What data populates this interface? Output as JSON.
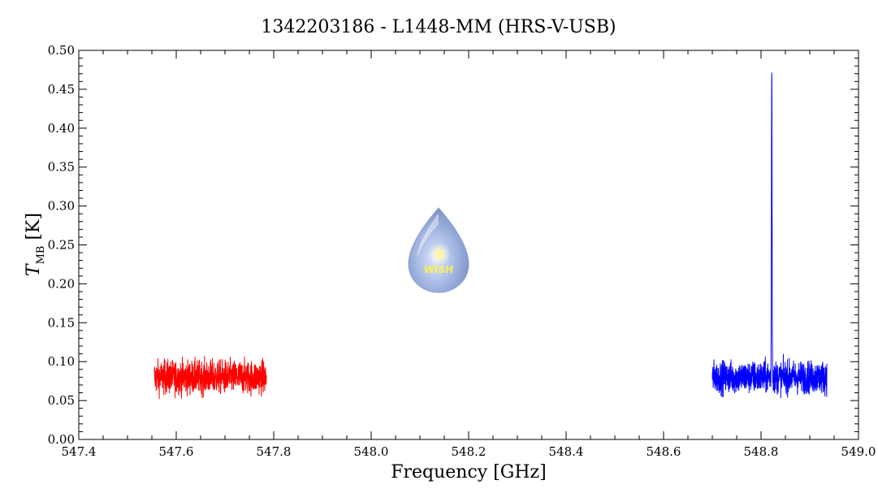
{
  "chart_data": {
    "type": "line",
    "title": "1342203186 - L1448-MM (HRS-V-USB)",
    "xlabel": "Frequency [GHz]",
    "ylabel_main": "T",
    "ylabel_sub": "MB",
    "ylabel_unit": " [K]",
    "xlim": [
      547.4,
      549.0
    ],
    "ylim": [
      0.0,
      0.5
    ],
    "x_ticks": [
      547.4,
      547.6,
      547.8,
      548.0,
      548.2,
      548.4,
      548.6,
      548.8,
      549.0
    ],
    "x_tick_labels": [
      "547.4",
      "547.6",
      "547.8",
      "548.0",
      "548.2",
      "548.4",
      "548.6",
      "548.8",
      "549.0"
    ],
    "y_ticks": [
      0.0,
      0.05,
      0.1,
      0.15,
      0.2,
      0.25,
      0.3,
      0.35,
      0.4,
      0.45,
      0.5
    ],
    "y_tick_labels": [
      "0.00",
      "0.05",
      "0.10",
      "0.15",
      "0.20",
      "0.25",
      "0.30",
      "0.35",
      "0.40",
      "0.45",
      "0.50"
    ],
    "grid": false,
    "legend": "none",
    "series": [
      {
        "color": "#ff0000",
        "x_range": [
          547.555,
          547.785
        ],
        "mean": 0.08,
        "noise_range": [
          0.01,
          0.135
        ],
        "peaks": []
      },
      {
        "color": "#0000ff",
        "x_range": [
          548.7,
          548.935
        ],
        "mean": 0.08,
        "noise_range": [
          0.015,
          0.135
        ],
        "peaks": [
          {
            "x": 548.822,
            "y": 0.485
          }
        ]
      }
    ]
  },
  "logo": {
    "text": "WISH",
    "color_text": "#ffee55",
    "color_drop": "#9bb0dd"
  }
}
